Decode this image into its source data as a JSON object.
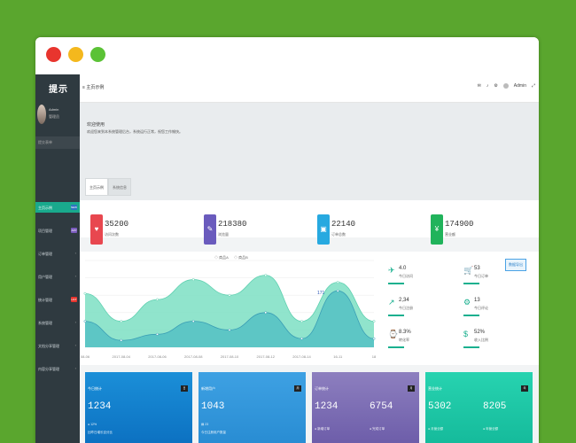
{
  "sidebar": {
    "brand": "提示",
    "user_name": "Admin",
    "user_role": "管理员",
    "search": "提交表单",
    "items": [
      {
        "label": "主页示例",
        "badge": "NEW",
        "badge_color": "#2f74c0",
        "active": true
      },
      {
        "label": "项目管理",
        "badge": "APP",
        "badge_color": "#7a5bbd"
      },
      {
        "label": "订单管理",
        "arrow": "›"
      },
      {
        "label": "用户管理",
        "arrow": "›"
      },
      {
        "label": "统计管理",
        "badge": "HOT",
        "badge_color": "#e8352e"
      },
      {
        "label": "系统管理",
        "arrow": "›"
      },
      {
        "label": "文档分享管理",
        "arrow": "›"
      },
      {
        "label": "内容分享管理",
        "arrow": "›"
      }
    ]
  },
  "topbar": {
    "breadcrumb": "主页示例",
    "user": "Admin"
  },
  "welcome": {
    "title": "欢迎使用",
    "subtitle": "欢迎您来到本系统管理后台，系统运行正常，祝您工作愉快。"
  },
  "tabs": [
    "主页示例",
    "系统信息"
  ],
  "stats": [
    {
      "value": "35200",
      "label": "访问次数",
      "color": "#e8474f",
      "icon": "♥"
    },
    {
      "value": "218380",
      "label": "浏览量",
      "color": "#6a5bbd",
      "icon": "✎"
    },
    {
      "value": "22140",
      "label": "订单总数",
      "color": "#27a9e0",
      "icon": "▣"
    },
    {
      "value": "174900",
      "label": "营业额",
      "color": "#21b35b",
      "icon": "¥"
    }
  ],
  "chart_data": {
    "type": "area",
    "series": [
      {
        "name": "商品A",
        "values": [
          62,
          30,
          55,
          78,
          60,
          83,
          30,
          75,
          30
        ],
        "color": "#7ddfc3"
      },
      {
        "name": "商品B",
        "values": [
          30,
          8,
          15,
          30,
          20,
          40,
          10,
          65,
          10
        ],
        "color": "#58c2c4"
      }
    ],
    "x_tick_labels": [
      "08-06",
      "2017-08-04",
      "2017-08-06",
      "2017-08-08",
      "2017-08-10",
      "2017-08-12",
      "2017-08-14",
      "16-11",
      "18"
    ],
    "ylim": [
      0,
      100
    ],
    "annotation": "171",
    "legend_position": "top-center"
  },
  "side_stats": [
    {
      "icon": "✈",
      "value": "4.0",
      "label": "今日访问"
    },
    {
      "icon": "🛒",
      "value": "53",
      "label": "今日订单"
    },
    {
      "icon": "↗",
      "value": "2,34",
      "label": "今日注册"
    },
    {
      "icon": "⚙",
      "value": "13",
      "label": "今日评论"
    },
    {
      "icon": "⌚",
      "value": "8.3%",
      "label": "转化率"
    },
    {
      "icon": "$",
      "value": "52%",
      "label": "收入比例"
    }
  ],
  "download_label": "数据导出",
  "cards": [
    {
      "title": "今日统计",
      "tag": "日",
      "nums": [
        "1234"
      ],
      "sub1": "● 12%",
      "sub2": "比昨日增长百分比",
      "color1": "#1b8fd8",
      "color2": "#0b6fc0"
    },
    {
      "title": "新增用户",
      "tag": "周",
      "nums": [
        "1043"
      ],
      "sub1": "▤ 23",
      "sub2": "今日注册用户数量",
      "color1": "#3ea1e3",
      "color2": "#278bd2"
    },
    {
      "title": "订单统计",
      "tag": "月",
      "nums": [
        "1234",
        "6754"
      ],
      "labels": [
        "● 新增订单",
        "● 完成订单"
      ],
      "color1": "#8d7fbf",
      "color2": "#6b5ba8"
    },
    {
      "title": "营业统计",
      "tag": "年",
      "nums": [
        "5302",
        "8205"
      ],
      "labels": [
        "● 月营业额",
        "● 年营业额"
      ],
      "color1": "#27d3b0",
      "color2": "#14b99a"
    }
  ]
}
